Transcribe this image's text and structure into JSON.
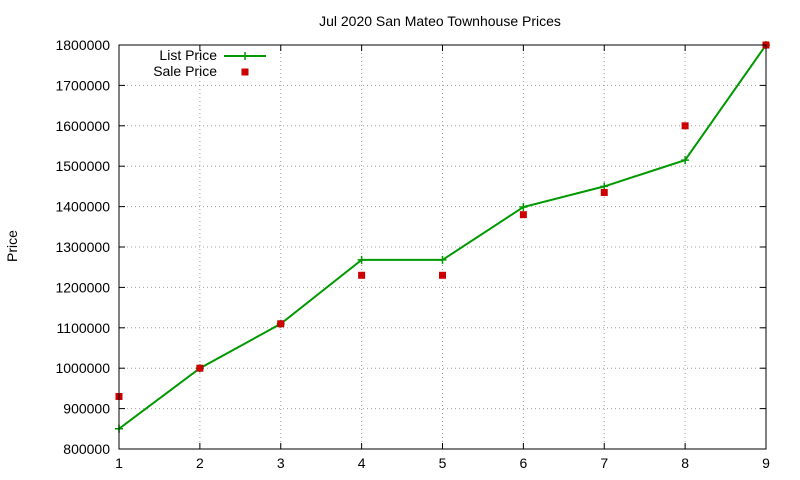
{
  "chart_data": {
    "type": "line",
    "title": "Jul 2020 San Mateo Townhouse Prices",
    "xlabel": "",
    "ylabel": "Price",
    "xlim": [
      1,
      9
    ],
    "ylim": [
      800000,
      1800000
    ],
    "x_ticks": [
      1,
      2,
      3,
      4,
      5,
      6,
      7,
      8,
      9
    ],
    "y_ticks": [
      800000,
      900000,
      1000000,
      1100000,
      1200000,
      1300000,
      1400000,
      1500000,
      1600000,
      1700000,
      1800000
    ],
    "grid": true,
    "legend_position": "top-left",
    "series": [
      {
        "name": "List Price",
        "style": "line+plus",
        "color": "#009900",
        "x": [
          1,
          2,
          3,
          4,
          5,
          6,
          7,
          8,
          9
        ],
        "values": [
          850000,
          1000000,
          1110000,
          1268000,
          1268000,
          1399000,
          1450000,
          1515000,
          1800000
        ]
      },
      {
        "name": "Sale Price",
        "style": "square",
        "color": "#cc0000",
        "x": [
          1,
          2,
          3,
          4,
          5,
          6,
          7,
          8,
          9
        ],
        "values": [
          930000,
          1000000,
          1110000,
          1230000,
          1230000,
          1380000,
          1435000,
          1600000,
          1800000
        ]
      }
    ]
  }
}
